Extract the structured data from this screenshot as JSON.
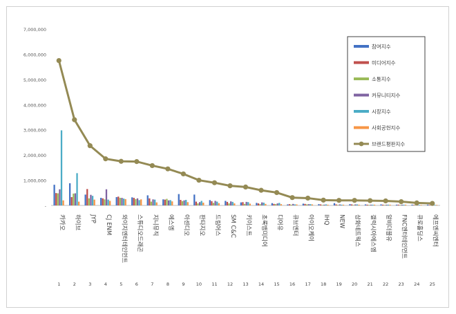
{
  "chart_data": {
    "type": "bar",
    "title": "",
    "xlabel": "",
    "ylabel": "",
    "ylim": [
      0,
      7000000
    ],
    "yticks": [
      0,
      1000000,
      2000000,
      3000000,
      4000000,
      5000000,
      6000000,
      7000000
    ],
    "ytick_labels": [
      "-",
      "1,000,000",
      "2,000,000",
      "3,000,000",
      "4,000,000",
      "5,000,000",
      "6,000,000",
      "7,000,000"
    ],
    "categories": [
      "카카오",
      "하이브",
      "JYP",
      "CJ ENM",
      "와이지엔터테인먼트",
      "스튜디오드래곤",
      "지니뮤직",
      "에스엠",
      "아센디오",
      "판타지오",
      "드림어스",
      "SM C&C",
      "키이스트",
      "초록뱀미디어",
      "디어유",
      "큐브엔터",
      "아이오케이",
      "IHQ",
      "NEW",
      "삼화네트웍스",
      "갤럭시아에스엠",
      "알비더블유",
      "FNC엔터테인먼트",
      "큐로홀딩스",
      "에프엔씨엔터"
    ],
    "rank_labels": [
      "1",
      "2",
      "3",
      "4",
      "5",
      "6",
      "7",
      "8",
      "9",
      "10",
      "11",
      "12",
      "13",
      "14",
      "15",
      "16",
      "17",
      "18",
      "19",
      "20",
      "21",
      "22",
      "23",
      "24",
      "25"
    ],
    "grid": false,
    "legend_position": "top-right",
    "series": [
      {
        "name": "참여지수",
        "kind": "bar",
        "color": "#4472c4",
        "values": [
          820000,
          880000,
          430000,
          300000,
          330000,
          320000,
          400000,
          240000,
          450000,
          430000,
          210000,
          180000,
          120000,
          100000,
          90000,
          40000,
          70000,
          50000,
          90000,
          50000,
          40000,
          40000,
          30000,
          30000,
          30000
        ]
      },
      {
        "name": "미디어지수",
        "kind": "bar",
        "color": "#c0504d",
        "values": [
          490000,
          330000,
          650000,
          280000,
          350000,
          300000,
          280000,
          230000,
          220000,
          150000,
          170000,
          140000,
          130000,
          80000,
          60000,
          50000,
          60000,
          40000,
          40000,
          40000,
          30000,
          30000,
          30000,
          20000,
          20000
        ]
      },
      {
        "name": "소통지수",
        "kind": "bar",
        "color": "#9bbb59",
        "values": [
          480000,
          470000,
          280000,
          240000,
          300000,
          250000,
          150000,
          260000,
          170000,
          80000,
          100000,
          80000,
          60000,
          50000,
          50000,
          30000,
          40000,
          20000,
          20000,
          20000,
          20000,
          20000,
          20000,
          20000,
          20000
        ]
      },
      {
        "name": "커뮤니티지수",
        "kind": "bar",
        "color": "#8064a2",
        "values": [
          640000,
          480000,
          420000,
          640000,
          300000,
          280000,
          240000,
          200000,
          200000,
          130000,
          180000,
          160000,
          140000,
          120000,
          80000,
          60000,
          50000,
          30000,
          40000,
          40000,
          30000,
          30000,
          30000,
          20000,
          20000
        ]
      },
      {
        "name": "시장지수",
        "kind": "bar",
        "color": "#4bacc6",
        "values": [
          2980000,
          1280000,
          380000,
          230000,
          270000,
          210000,
          230000,
          210000,
          220000,
          180000,
          150000,
          140000,
          130000,
          110000,
          100000,
          40000,
          50000,
          40000,
          30000,
          40000,
          30000,
          30000,
          30000,
          20000,
          20000
        ]
      },
      {
        "name": "사회공헌지수",
        "kind": "bar",
        "color": "#f79646",
        "values": [
          200000,
          150000,
          230000,
          180000,
          250000,
          240000,
          120000,
          160000,
          130000,
          110000,
          90000,
          80000,
          70000,
          60000,
          50000,
          40000,
          40000,
          30000,
          30000,
          30000,
          30000,
          30000,
          30000,
          20000,
          20000
        ]
      },
      {
        "name": "브랜드평판지수",
        "kind": "line",
        "color": "#948a54",
        "values": [
          5750000,
          3400000,
          2370000,
          1850000,
          1750000,
          1740000,
          1580000,
          1450000,
          1250000,
          1000000,
          900000,
          780000,
          730000,
          600000,
          510000,
          310000,
          290000,
          210000,
          200000,
          200000,
          190000,
          180000,
          150000,
          100000,
          80000
        ]
      }
    ]
  }
}
